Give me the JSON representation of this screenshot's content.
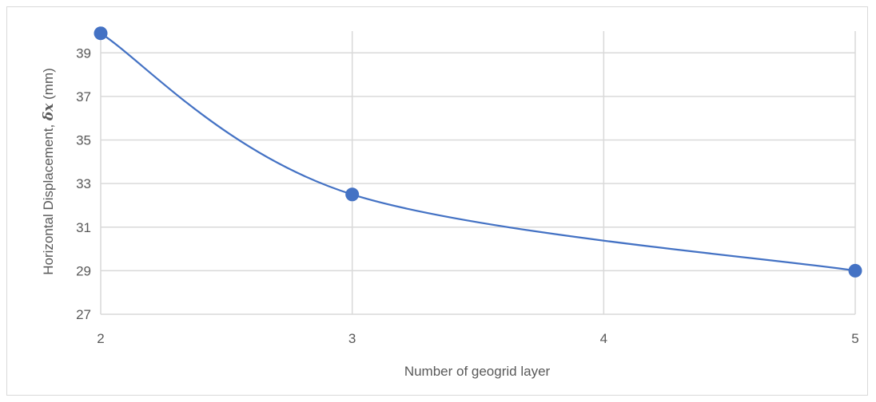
{
  "chart_data": {
    "type": "line",
    "title": "",
    "xlabel": "Number of geogrid layer",
    "ylabel": {
      "prefix": "Horizontal Displacement, ",
      "symbol": "δx",
      "suffix": " (mm)"
    },
    "x": [
      2,
      3,
      4,
      5
    ],
    "x_ticks": [
      "2",
      "3",
      "4",
      "5"
    ],
    "y_ticks": [
      "27",
      "29",
      "31",
      "33",
      "35",
      "37",
      "39"
    ],
    "ylim": [
      27,
      40
    ],
    "xlim": [
      2,
      5
    ],
    "grid": true,
    "legend": "none",
    "smooth": true,
    "series": [
      {
        "x": [
          2,
          3,
          5
        ],
        "values": [
          39.9,
          32.5,
          29.0
        ],
        "color": "#4472c4"
      }
    ]
  },
  "colors": {
    "line": "#4472c4",
    "marker": "#4472c4",
    "grid": "#d9d9d9",
    "text": "#595959"
  }
}
